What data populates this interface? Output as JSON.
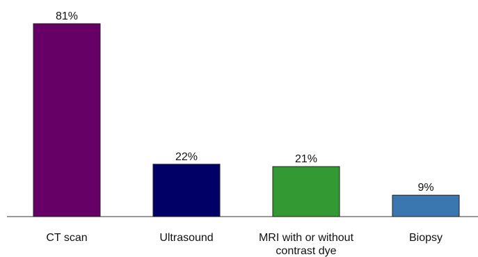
{
  "chart_data": {
    "type": "bar",
    "categories": [
      "CT scan",
      "Ultrasound",
      "MRI with or without contrast dye",
      "Biopsy"
    ],
    "category_lines": [
      [
        "CT scan"
      ],
      [
        "Ultrasound"
      ],
      [
        "MRI with or without",
        "contrast dye"
      ],
      [
        "Biopsy"
      ]
    ],
    "values": [
      81,
      22,
      21,
      9
    ],
    "value_labels": [
      "81%",
      "22%",
      "21%",
      "9%"
    ],
    "colors": [
      "#660066",
      "#000066",
      "#339933",
      "#3A76AF"
    ],
    "ylim": [
      0,
      81
    ],
    "grid": false,
    "legend": "none"
  }
}
